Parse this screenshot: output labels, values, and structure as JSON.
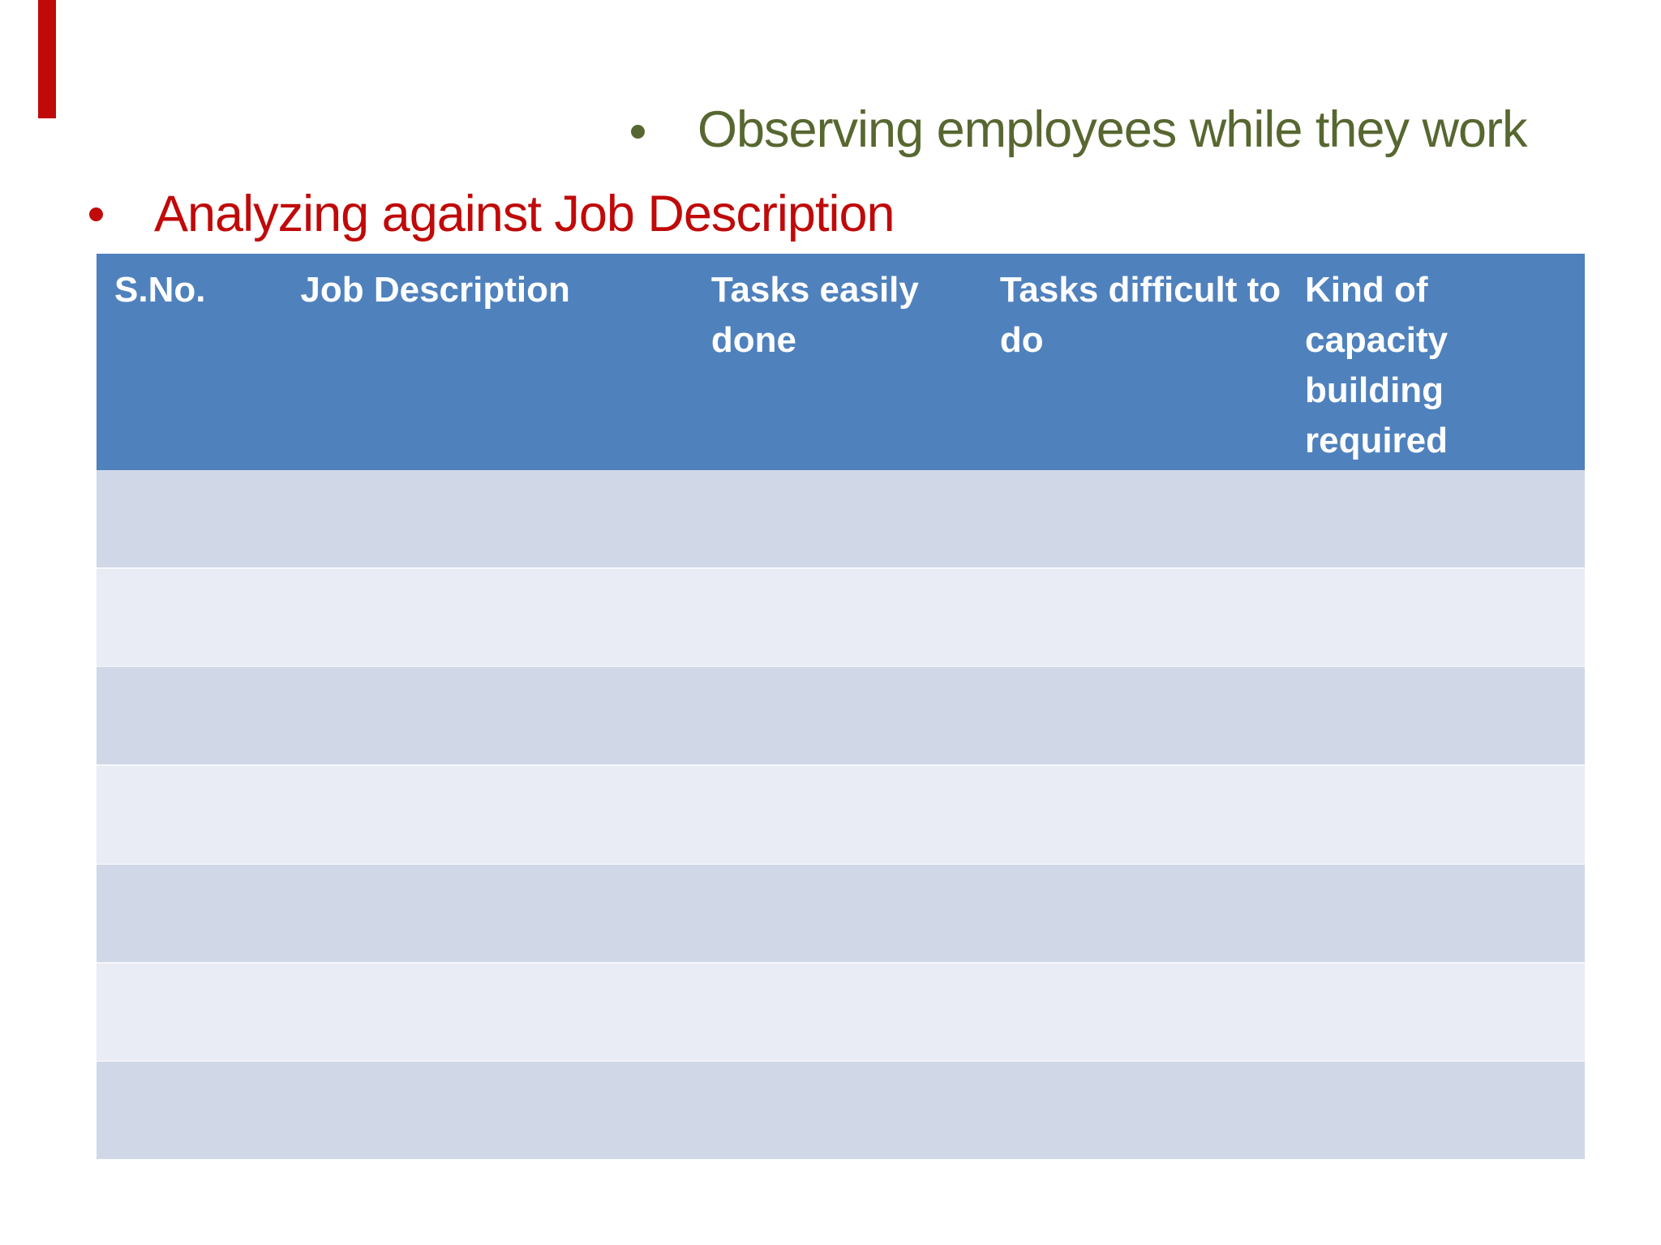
{
  "slide": {
    "accent_bar_color": "#C00909",
    "bullets": {
      "green": {
        "text": "Observing employees while they work",
        "color": "#576730"
      },
      "red": {
        "text": "Analyzing against Job Description",
        "color": "#C00909"
      }
    },
    "table": {
      "header_bg": "#4F81BD",
      "header_text_color": "#FFFFFF",
      "band_dark": "#D0D8E8",
      "band_light": "#E9EBF5",
      "columns": [
        "S.No.",
        "Job Description",
        "Tasks easily done",
        "Tasks difficult to do",
        "Kind of capacity building required"
      ],
      "rows": [
        [
          "",
          "",
          "",
          "",
          ""
        ],
        [
          "",
          "",
          "",
          "",
          ""
        ],
        [
          "",
          "",
          "",
          "",
          ""
        ],
        [
          "",
          "",
          "",
          "",
          ""
        ],
        [
          "",
          "",
          "",
          "",
          ""
        ],
        [
          "",
          "",
          "",
          "",
          ""
        ],
        [
          "",
          "",
          "",
          "",
          ""
        ]
      ]
    }
  }
}
